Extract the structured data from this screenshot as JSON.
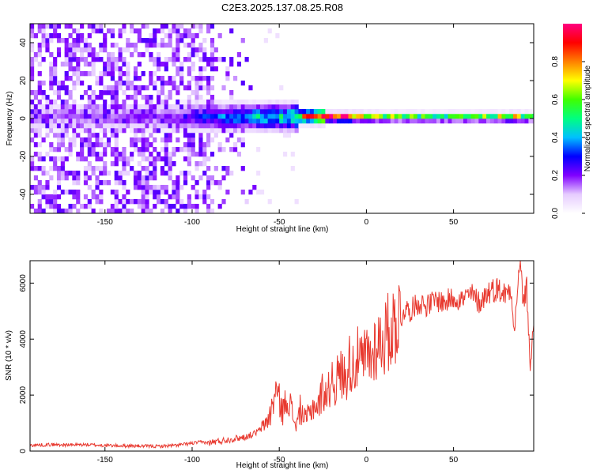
{
  "title": "C2E3.2025.137.08.25.R08",
  "chart_data": [
    {
      "type": "heatmap",
      "xlabel": "Height of straight line (km)",
      "ylabel": "Frequency (Hz)",
      "xlim": [
        -193,
        96
      ],
      "ylim": [
        -50,
        50
      ],
      "xticks": [
        -150,
        -100,
        -50,
        0,
        50
      ],
      "yticks": [
        -40,
        -20,
        0,
        20,
        40
      ],
      "colorbar": {
        "label": "Normalized spectral amplitude",
        "range": [
          0,
          1
        ],
        "ticks": [
          "0.0",
          "0.2",
          "0.4",
          "0.6",
          "0.8"
        ],
        "colors": [
          "#ffffff",
          "#e6ccff",
          "#8000ff",
          "#0000ff",
          "#00c0ff",
          "#00ff80",
          "#40ff00",
          "#ffff00",
          "#ff8000",
          "#ff0000",
          "#ff0080"
        ]
      },
      "band_amplitude": [
        {
          "x": -193,
          "amp": 0.15
        },
        {
          "x": -110,
          "amp": 0.2
        },
        {
          "x": -100,
          "amp": 0.3
        },
        {
          "x": -85,
          "amp": 0.35
        },
        {
          "x": -60,
          "amp": 0.45
        },
        {
          "x": -45,
          "amp": 0.5
        },
        {
          "x": -30,
          "amp": 0.95
        },
        {
          "x": -10,
          "amp": 0.95
        },
        {
          "x": 0,
          "amp": 0.7
        },
        {
          "x": 20,
          "amp": 0.6
        },
        {
          "x": 60,
          "amp": 0.6
        },
        {
          "x": 85,
          "amp": 0.75
        },
        {
          "x": 96,
          "amp": 0.5
        }
      ]
    },
    {
      "type": "line",
      "xlabel": "Height of straight line (km)",
      "ylabel": "SNR (10 * v/v)",
      "xlim": [
        -193,
        96
      ],
      "ylim": [
        0,
        6800
      ],
      "xticks": [
        -150,
        -100,
        -50,
        0,
        50
      ],
      "yticks": [
        0,
        2000,
        4000,
        6000
      ],
      "series": [
        {
          "color": "#e8392f",
          "points": [
            [
              -193,
              210
            ],
            [
              -180,
              230
            ],
            [
              -170,
              220
            ],
            [
              -160,
              230
            ],
            [
              -150,
              200
            ],
            [
              -140,
              190
            ],
            [
              -130,
              180
            ],
            [
              -120,
              170
            ],
            [
              -110,
              200
            ],
            [
              -105,
              240
            ],
            [
              -100,
              280
            ],
            [
              -95,
              320
            ],
            [
              -90,
              300
            ],
            [
              -85,
              350
            ],
            [
              -80,
              400
            ],
            [
              -75,
              450
            ],
            [
              -70,
              500
            ],
            [
              -65,
              600
            ],
            [
              -60,
              800
            ],
            [
              -55,
              1300
            ],
            [
              -52,
              2200
            ],
            [
              -50,
              1800
            ],
            [
              -48,
              1400
            ],
            [
              -45,
              2000
            ],
            [
              -42,
              1200
            ],
            [
              -40,
              900
            ],
            [
              -38,
              1500
            ],
            [
              -35,
              1100
            ],
            [
              -32,
              1400
            ],
            [
              -30,
              1700
            ],
            [
              -28,
              1500
            ],
            [
              -25,
              2200
            ],
            [
              -22,
              2000
            ],
            [
              -20,
              2700
            ],
            [
              -18,
              2400
            ],
            [
              -15,
              2800
            ],
            [
              -12,
              2600
            ],
            [
              -10,
              3200
            ],
            [
              -8,
              3000
            ],
            [
              -5,
              3300
            ],
            [
              -2,
              3100
            ],
            [
              0,
              3500
            ],
            [
              3,
              3300
            ],
            [
              5,
              3800
            ],
            [
              8,
              3900
            ],
            [
              10,
              4000
            ],
            [
              12,
              4200
            ],
            [
              15,
              4400
            ],
            [
              18,
              4800
            ],
            [
              20,
              4700
            ],
            [
              22,
              5100
            ],
            [
              25,
              5000
            ],
            [
              28,
              5200
            ],
            [
              30,
              5300
            ],
            [
              35,
              5200
            ],
            [
              40,
              5400
            ],
            [
              45,
              5300
            ],
            [
              50,
              5500
            ],
            [
              55,
              5400
            ],
            [
              60,
              5600
            ],
            [
              65,
              5300
            ],
            [
              70,
              5700
            ],
            [
              75,
              5800
            ],
            [
              80,
              5600
            ],
            [
              83,
              5900
            ],
            [
              85,
              4200
            ],
            [
              87,
              6200
            ],
            [
              89,
              6500
            ],
            [
              90,
              5200
            ],
            [
              92,
              5800
            ],
            [
              94,
              3000
            ],
            [
              96,
              4500
            ]
          ]
        }
      ]
    }
  ]
}
